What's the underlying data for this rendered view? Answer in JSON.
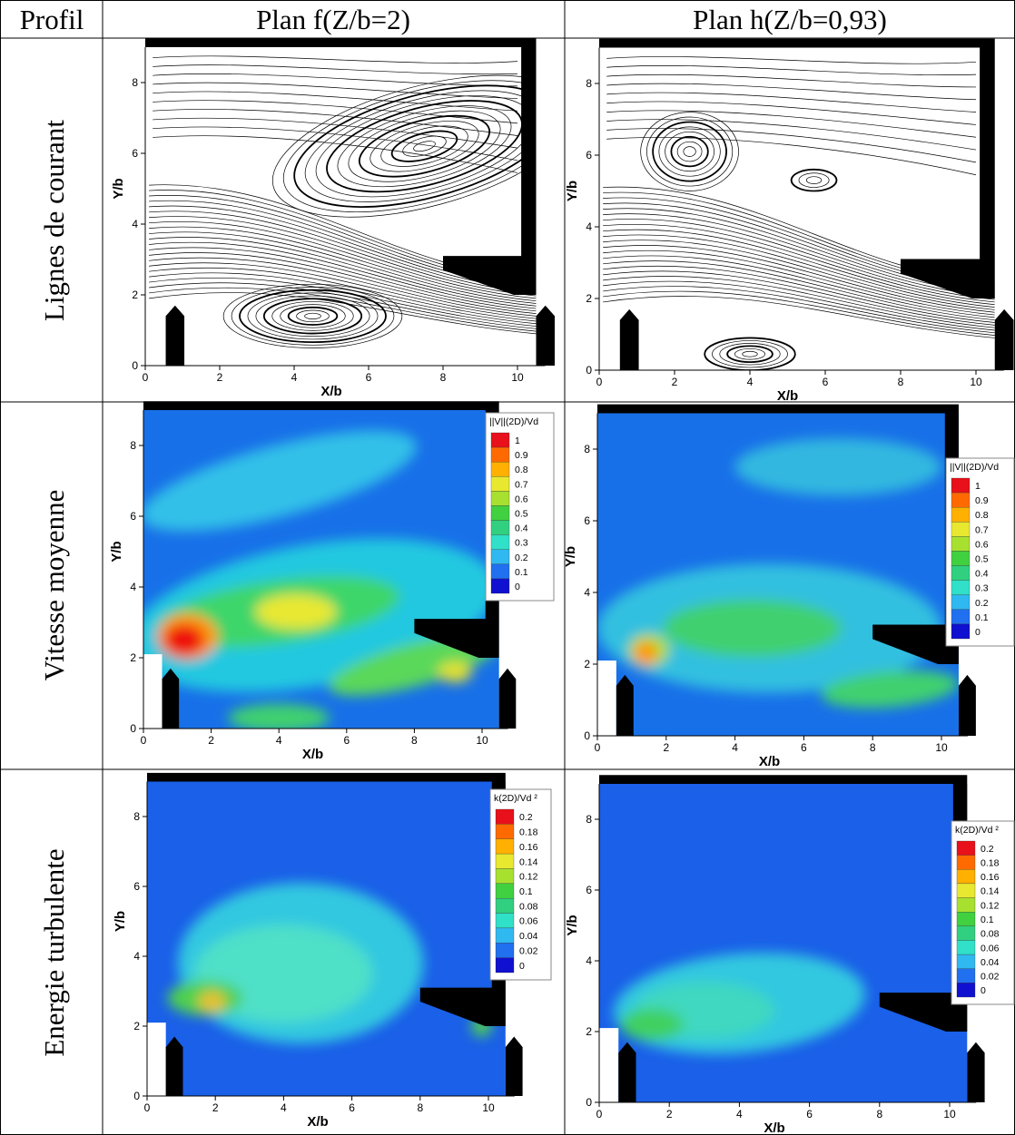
{
  "header": {
    "profile": "Profil",
    "plan_f": "Plan f(Z/b=2)",
    "plan_h": "Plan h(Z/b=0,93)"
  },
  "rows": [
    {
      "label": "Lignes de courant",
      "panels": [
        {
          "x_label": "X/b",
          "y_label": "Y/b",
          "x_ticks": [
            0,
            2,
            4,
            6,
            8,
            10
          ],
          "y_ticks": [
            0,
            2,
            4,
            6,
            8
          ]
        },
        {
          "x_label": "X/b",
          "y_label": "Y/b",
          "x_ticks": [
            0,
            2,
            4,
            6,
            8,
            10
          ],
          "y_ticks": [
            0,
            2,
            4,
            6,
            8
          ]
        }
      ]
    },
    {
      "label": "Vitesse moyenne",
      "panels": [
        {
          "x_label": "X/b",
          "y_label": "Y/b",
          "x_ticks": [
            0,
            2,
            4,
            6,
            8,
            10
          ],
          "y_ticks": [
            0,
            2,
            4,
            6,
            8
          ],
          "legend": {
            "title": "||V||(2D)/Vd",
            "levels": [
              1,
              0.9,
              0.8,
              0.7,
              0.6,
              0.5,
              0.4,
              0.3,
              0.2,
              0.1,
              0
            ]
          }
        },
        {
          "x_label": "X/b",
          "y_label": "Y/b",
          "x_ticks": [
            0,
            2,
            4,
            6,
            8,
            10
          ],
          "y_ticks": [
            0,
            2,
            4,
            6,
            8
          ],
          "legend": {
            "title": "||V||(2D)/Vd",
            "levels": [
              1,
              0.9,
              0.8,
              0.7,
              0.6,
              0.5,
              0.4,
              0.3,
              0.2,
              0.1,
              0
            ]
          }
        }
      ]
    },
    {
      "label": "Energie turbulente",
      "panels": [
        {
          "x_label": "X/b",
          "y_label": "Y/b",
          "x_ticks": [
            0,
            2,
            4,
            6,
            8,
            10
          ],
          "y_ticks": [
            0,
            2,
            4,
            6,
            8
          ],
          "legend": {
            "title": "k(2D)/Vd ²",
            "levels": [
              0.2,
              0.18,
              0.16,
              0.14,
              0.12,
              0.1,
              0.08,
              0.06,
              0.04,
              0.02,
              0
            ]
          }
        },
        {
          "x_label": "X/b",
          "y_label": "Y/b",
          "x_ticks": [
            0,
            2,
            4,
            6,
            8,
            10
          ],
          "y_ticks": [
            0,
            2,
            4,
            6,
            8
          ],
          "legend": {
            "title": "k(2D)/Vd ²",
            "levels": [
              0.2,
              0.18,
              0.16,
              0.14,
              0.12,
              0.1,
              0.08,
              0.06,
              0.04,
              0.02,
              0
            ]
          }
        }
      ]
    }
  ]
}
